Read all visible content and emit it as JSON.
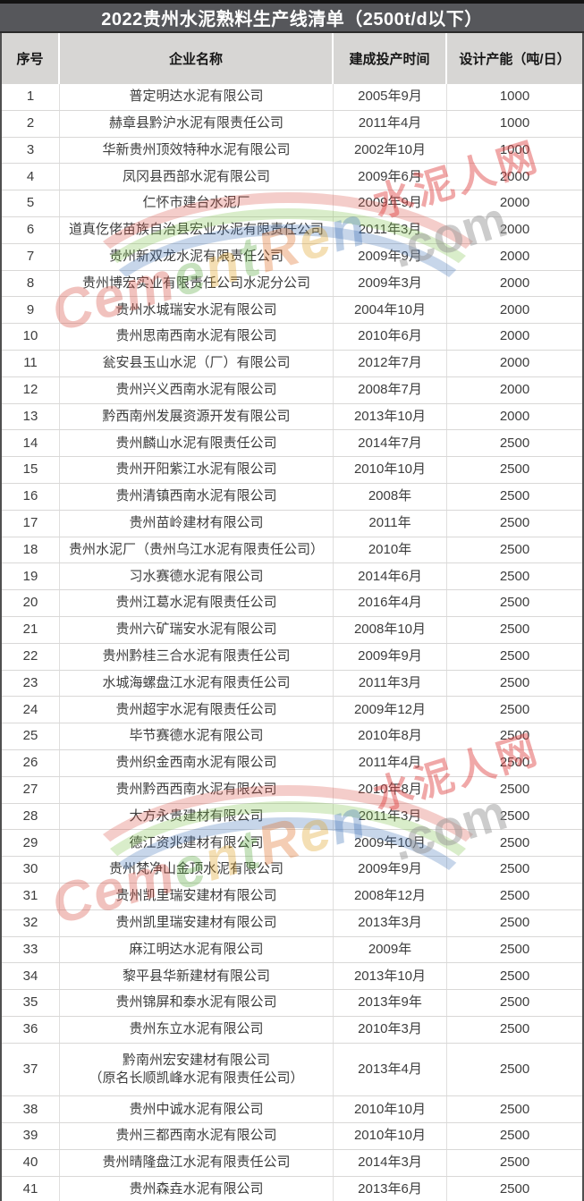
{
  "title": "2022贵州水泥熟料生产线清单（2500t/d以下）",
  "table": {
    "headers": [
      "序号",
      "企业名称",
      "建成投产时间",
      "设计产能（吨/日）"
    ],
    "rows": [
      {
        "no": "1",
        "name": "普定明达水泥有限公司",
        "name2": "",
        "date": "2005年9月",
        "capacity": "1000"
      },
      {
        "no": "2",
        "name": "赫章县黔沪水泥有限责任公司",
        "name2": "",
        "date": "2011年4月",
        "capacity": "1000"
      },
      {
        "no": "3",
        "name": "华新贵州顶效特种水泥有限公司",
        "name2": "",
        "date": "2002年10月",
        "capacity": "1000"
      },
      {
        "no": "4",
        "name": "凤冈县西部水泥有限公司",
        "name2": "",
        "date": "2009年6月",
        "capacity": "2000"
      },
      {
        "no": "5",
        "name": "仁怀市建台水泥厂",
        "name2": "",
        "date": "2009年9月",
        "capacity": "2000"
      },
      {
        "no": "6",
        "name": "道真仡佬苗族自治县宏业水泥有限责任公司",
        "name2": "",
        "date": "2011年3月",
        "capacity": "2000"
      },
      {
        "no": "7",
        "name": "贵州新双龙水泥有限责任公司",
        "name2": "",
        "date": "2009年9月",
        "capacity": "2000"
      },
      {
        "no": "8",
        "name": "贵州博宏实业有限责任公司水泥分公司",
        "name2": "",
        "date": "2009年3月",
        "capacity": "2000"
      },
      {
        "no": "9",
        "name": "贵州水城瑞安水泥有限公司",
        "name2": "",
        "date": "2004年10月",
        "capacity": "2000"
      },
      {
        "no": "10",
        "name": "贵州思南西南水泥有限公司",
        "name2": "",
        "date": "2010年6月",
        "capacity": "2000"
      },
      {
        "no": "11",
        "name": "瓮安县玉山水泥（厂）有限公司",
        "name2": "",
        "date": "2012年7月",
        "capacity": "2000"
      },
      {
        "no": "12",
        "name": "贵州兴义西南水泥有限公司",
        "name2": "",
        "date": "2008年7月",
        "capacity": "2000"
      },
      {
        "no": "13",
        "name": "黔西南州发展资源开发有限公司",
        "name2": "",
        "date": "2013年10月",
        "capacity": "2000"
      },
      {
        "no": "14",
        "name": "贵州麟山水泥有限责任公司",
        "name2": "",
        "date": "2014年7月",
        "capacity": "2500"
      },
      {
        "no": "15",
        "name": "贵州开阳紫江水泥有限公司",
        "name2": "",
        "date": "2010年10月",
        "capacity": "2500"
      },
      {
        "no": "16",
        "name": "贵州清镇西南水泥有限公司",
        "name2": "",
        "date": "2008年",
        "capacity": "2500"
      },
      {
        "no": "17",
        "name": "贵州苗岭建材有限公司",
        "name2": "",
        "date": "2011年",
        "capacity": "2500"
      },
      {
        "no": "18",
        "name": "贵州水泥厂（贵州乌江水泥有限责任公司）",
        "name2": "",
        "date": "2010年",
        "capacity": "2500"
      },
      {
        "no": "19",
        "name": "习水赛德水泥有限公司",
        "name2": "",
        "date": "2014年6月",
        "capacity": "2500"
      },
      {
        "no": "20",
        "name": "贵州江葛水泥有限责任公司",
        "name2": "",
        "date": "2016年4月",
        "capacity": "2500"
      },
      {
        "no": "21",
        "name": "贵州六矿瑞安水泥有限公司",
        "name2": "",
        "date": "2008年10月",
        "capacity": "2500"
      },
      {
        "no": "22",
        "name": "贵州黔桂三合水泥有限责任公司",
        "name2": "",
        "date": "2009年9月",
        "capacity": "2500"
      },
      {
        "no": "23",
        "name": "水城海螺盘江水泥有限责任公司",
        "name2": "",
        "date": "2011年3月",
        "capacity": "2500"
      },
      {
        "no": "24",
        "name": "贵州超宇水泥有限责任公司",
        "name2": "",
        "date": "2009年12月",
        "capacity": "2500"
      },
      {
        "no": "25",
        "name": "毕节赛德水泥有限公司",
        "name2": "",
        "date": "2010年8月",
        "capacity": "2500"
      },
      {
        "no": "26",
        "name": "贵州织金西南水泥有限公司",
        "name2": "",
        "date": "2011年4月",
        "capacity": "2500"
      },
      {
        "no": "27",
        "name": "贵州黔西西南水泥有限公司",
        "name2": "",
        "date": "2010年8月",
        "capacity": "2500"
      },
      {
        "no": "28",
        "name": "大方永贵建材有限公司",
        "name2": "",
        "date": "2011年3月",
        "capacity": "2500"
      },
      {
        "no": "29",
        "name": "德江资兆建材有限公司",
        "name2": "",
        "date": "2009年10月",
        "capacity": "2500"
      },
      {
        "no": "30",
        "name": "贵州梵净山金顶水泥有限公司",
        "name2": "",
        "date": "2009年9月",
        "capacity": "2500"
      },
      {
        "no": "31",
        "name": "贵州凯里瑞安建材有限公司",
        "name2": "",
        "date": "2008年12月",
        "capacity": "2500"
      },
      {
        "no": "32",
        "name": "贵州凯里瑞安建材有限公司",
        "name2": "",
        "date": "2013年3月",
        "capacity": "2500"
      },
      {
        "no": "33",
        "name": "麻江明达水泥有限公司",
        "name2": "",
        "date": "2009年",
        "capacity": "2500"
      },
      {
        "no": "34",
        "name": "黎平县华新建材有限公司",
        "name2": "",
        "date": "2013年10月",
        "capacity": "2500"
      },
      {
        "no": "35",
        "name": "贵州锦屏和泰水泥有限公司",
        "name2": "",
        "date": "2013年9年",
        "capacity": "2500"
      },
      {
        "no": "36",
        "name": "贵州东立水泥有限公司",
        "name2": "",
        "date": "2010年3月",
        "capacity": "2500"
      },
      {
        "no": "37",
        "name": "黔南州宏安建材有限公司",
        "name2": "（原名长顺凯峰水泥有限责任公司）",
        "date": "2013年4月",
        "capacity": "2500"
      },
      {
        "no": "38",
        "name": "贵州中诚水泥有限公司",
        "name2": "",
        "date": "2010年10月",
        "capacity": "2500"
      },
      {
        "no": "39",
        "name": "贵州三都西南水泥有限公司",
        "name2": "",
        "date": "2010年10月",
        "capacity": "2500"
      },
      {
        "no": "40",
        "name": "贵州晴隆盘江水泥有限责任公司",
        "name2": "",
        "date": "2014年3月",
        "capacity": "2500"
      },
      {
        "no": "41",
        "name": "贵州森垚水泥有限公司",
        "name2": "",
        "date": "2013年6月",
        "capacity": "2500"
      }
    ]
  },
  "watermark": {
    "site_name_cn": "水泥人网",
    "brand": "CementRen",
    "domain_suffix": ".com",
    "cn_color": "#e04040",
    "com_color": "#9a9a9a",
    "letter_colors": [
      "#d54a3c",
      "#d54a3c",
      "#d54a3c",
      "#58a83c",
      "#e0a020",
      "#58a83c",
      "#e06a1f",
      "#e0a020",
      "#3b6fb5"
    ],
    "swoosh_colors": [
      "#d94f43",
      "#7ac143",
      "#3b6fb5"
    ]
  },
  "colors": {
    "title_bar_bg": "#56575b",
    "title_text": "#ffffff",
    "header_bg": "#d7d6d4",
    "body_text": "#3d3d3d",
    "outer_border": "#4f4f4f"
  }
}
